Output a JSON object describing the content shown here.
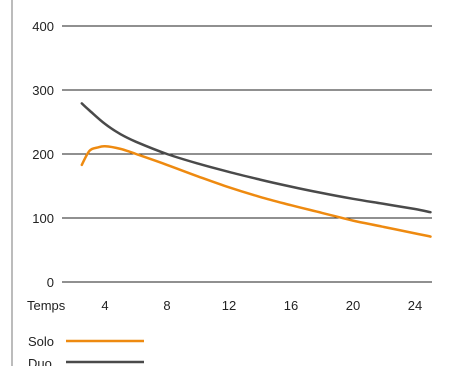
{
  "chart_data": {
    "type": "line",
    "title": "",
    "xlabel": "Temps",
    "ylabel": "",
    "xlim": [
      2,
      25
    ],
    "ylim": [
      0,
      400
    ],
    "x_ticks": [
      4,
      8,
      12,
      16,
      20,
      24
    ],
    "y_ticks": [
      0,
      100,
      200,
      300,
      400
    ],
    "grid": "horizontal",
    "legend_position": "bottom-left",
    "series": [
      {
        "name": "Solo",
        "color": "#ee8a10",
        "x": [
          2.5,
          3,
          3.5,
          4,
          5,
          6,
          8,
          10,
          12,
          14,
          16,
          18,
          20,
          22,
          24,
          25
        ],
        "y": [
          183,
          205,
          210,
          212,
          208,
          200,
          183,
          165,
          148,
          133,
          120,
          108,
          96,
          86,
          76,
          71
        ]
      },
      {
        "name": "Duo",
        "color": "#4a4a4a",
        "x": [
          2.5,
          3,
          4,
          5,
          6,
          8,
          10,
          12,
          14,
          16,
          18,
          20,
          22,
          24,
          25
        ],
        "y": [
          279,
          268,
          247,
          231,
          219,
          200,
          185,
          172,
          160,
          149,
          139,
          130,
          122,
          114,
          109
        ]
      }
    ]
  }
}
